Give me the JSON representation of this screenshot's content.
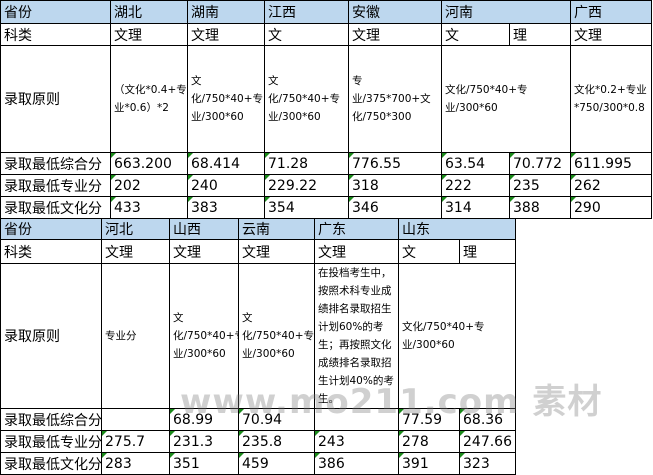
{
  "watermark": "www.mo211.com 素材",
  "colors": {
    "header_bg": "#bdd7ee",
    "number_marker": "#1a8a1a"
  },
  "labels": {
    "province": "省份",
    "category": "科类",
    "rule": "录取原则",
    "min_total": "录取最低综合分",
    "min_major": "录取最低专业分",
    "min_culture": "录取最低文化分"
  },
  "table1": {
    "provinces": [
      {
        "name": "湖北",
        "cats": [
          {
            "cat": "文理",
            "total": "663.200",
            "major": "202",
            "culture": "433"
          }
        ],
        "rule": "（文化*0.4+专业*0.6）*2"
      },
      {
        "name": "湖南",
        "cats": [
          {
            "cat": "文理",
            "total": "68.414",
            "major": "240",
            "culture": "383"
          }
        ],
        "rule": "文化/750*40+专业/300*60"
      },
      {
        "name": "江西",
        "cats": [
          {
            "cat": "文",
            "total": "71.28",
            "major": "229.22",
            "culture": "354"
          }
        ],
        "rule": "文化/750*40+专业/300*60"
      },
      {
        "name": "安徽",
        "cats": [
          {
            "cat": "文理",
            "total": "776.55",
            "major": "318",
            "culture": "346"
          }
        ],
        "rule": "专业/375*700+文化/750*300"
      },
      {
        "name": "河南",
        "cats": [
          {
            "cat": "文",
            "total": "63.54",
            "major": "222",
            "culture": "314"
          },
          {
            "cat": "理",
            "total": "70.772",
            "major": "235",
            "culture": "388"
          }
        ],
        "rule": "文化/750*40+专业/300*60"
      },
      {
        "name": "广西",
        "cats": [
          {
            "cat": "文理",
            "total": "611.995",
            "major": "262",
            "culture": "290"
          }
        ],
        "rule": "文化*0.2+专业*750/300*0.8"
      }
    ]
  },
  "table2": {
    "provinces": [
      {
        "name": "河北",
        "cats": [
          {
            "cat": "文理",
            "total": "",
            "major": "275.7",
            "culture": "283"
          }
        ],
        "rule": "专业分"
      },
      {
        "name": "山西",
        "cats": [
          {
            "cat": "文理",
            "total": "68.99",
            "major": "231.3",
            "culture": "351"
          }
        ],
        "rule": "文化/750*40+专业/300*60"
      },
      {
        "name": "云南",
        "cats": [
          {
            "cat": "文理",
            "total": "70.94",
            "major": "235.8",
            "culture": "459"
          }
        ],
        "rule": "文化/750*40+专业/300*60"
      },
      {
        "name": "广东",
        "cats": [
          {
            "cat": "文理",
            "total": "",
            "major": "243",
            "culture": "386"
          }
        ],
        "rule": "在投档考生中，按照术科专业成绩排名录取招生计划60%的考生；再按照文化成绩排名录取招生计划40%的考生。"
      },
      {
        "name": "山东",
        "cats": [
          {
            "cat": "文",
            "total": "77.59",
            "major": "278",
            "culture": "391"
          },
          {
            "cat": "理",
            "total": "68.36",
            "major": "247.66",
            "culture": "323"
          }
        ],
        "rule": "文化/750*40+专业/300*60"
      }
    ]
  }
}
